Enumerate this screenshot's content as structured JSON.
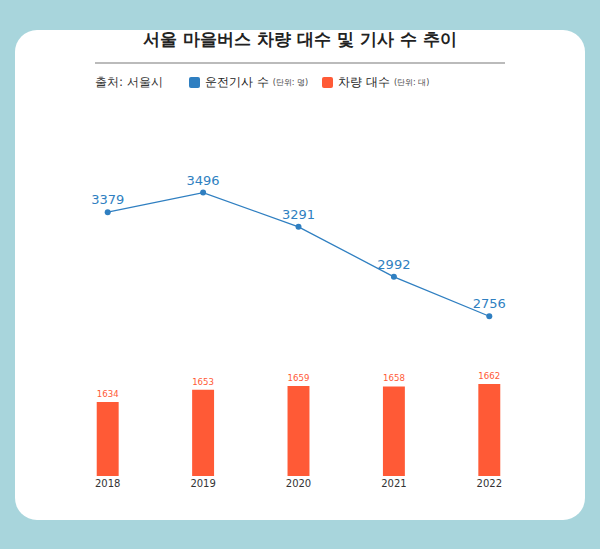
{
  "chart_data": {
    "type": "bar",
    "title": "서울 마을버스 차량 대수 및 기사 수 추이",
    "source": "출처: 서울시",
    "categories": [
      "2018",
      "2019",
      "2020",
      "2021",
      "2022"
    ],
    "series": [
      {
        "name": "운전기사 수",
        "unit_label": "(단위: 명)",
        "type": "line",
        "axis": "y2",
        "color": "#2f7fc1",
        "marker": "circle",
        "values": [
          3379,
          3496,
          3291,
          2992,
          2756
        ]
      },
      {
        "name": "차량 대수",
        "unit_label": "(단위: 대)",
        "type": "bar",
        "color": "#ff5a36",
        "values": [
          1634,
          1653,
          1659,
          1658,
          1662
        ]
      }
    ],
    "ylim": [
      1520,
      2100
    ],
    "y2lim": [
      1800,
      4050
    ],
    "data_labels": true,
    "tick_labels": "x",
    "grid": false
  }
}
